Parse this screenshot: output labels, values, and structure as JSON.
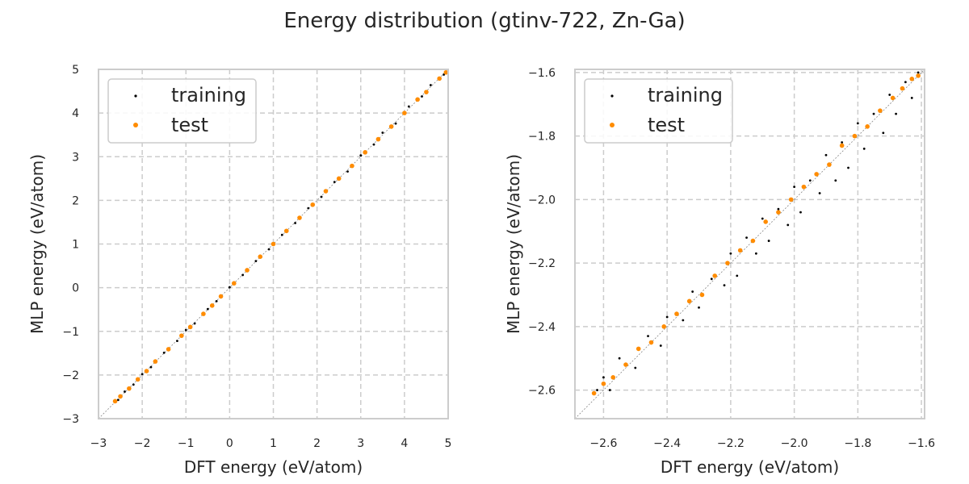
{
  "figure": {
    "title": "Energy distribution (gtinv-722, Zn-Ga)"
  },
  "colors": {
    "training": "#000000",
    "test": "#ff8c00",
    "grid": "#cccccc",
    "frame": "#cccccc",
    "diagonal": "#888888"
  },
  "chart_data": [
    {
      "type": "scatter",
      "xlabel": "DFT energy (eV/atom)",
      "ylabel": "MLP energy (eV/atom)",
      "xlim": [
        -3,
        5
      ],
      "ylim": [
        -3,
        5
      ],
      "xticks": [
        -3,
        -2,
        -1,
        0,
        1,
        2,
        3,
        4,
        5
      ],
      "yticks": [
        -3,
        -2,
        -1,
        0,
        1,
        2,
        3,
        4,
        5
      ],
      "tick_labels_x": [
        "−3",
        "−2",
        "−1",
        "0",
        "1",
        "2",
        "3",
        "4",
        "5"
      ],
      "tick_labels_y": [
        "−3",
        "−2",
        "−1",
        "0",
        "1",
        "2",
        "3",
        "4",
        "5"
      ],
      "grid": true,
      "legend": "top-left",
      "reference_line": "y = x",
      "series": [
        {
          "name": "training",
          "color": "#000000",
          "x": [
            -2.62,
            -2.55,
            -2.4,
            -2.2,
            -2.0,
            -1.8,
            -1.5,
            -1.2,
            -1.0,
            -0.8,
            -0.5,
            -0.3,
            0.0,
            0.3,
            0.6,
            0.9,
            1.2,
            1.5,
            1.8,
            2.1,
            2.4,
            2.7,
            3.0,
            3.3,
            3.5,
            3.8,
            4.1,
            4.4,
            4.6,
            4.9
          ],
          "y": [
            -2.6,
            -2.57,
            -2.38,
            -2.22,
            -1.98,
            -1.82,
            -1.49,
            -1.22,
            -0.97,
            -0.82,
            -0.49,
            -0.31,
            0.01,
            0.29,
            0.61,
            0.88,
            1.21,
            1.48,
            1.82,
            2.08,
            2.42,
            2.66,
            3.03,
            3.28,
            3.55,
            3.76,
            4.15,
            4.38,
            4.64,
            4.88
          ]
        },
        {
          "name": "test",
          "color": "#ff8c00",
          "x": [
            -2.62,
            -2.5,
            -2.3,
            -2.1,
            -1.9,
            -1.7,
            -1.4,
            -1.1,
            -0.9,
            -0.6,
            -0.4,
            -0.2,
            0.1,
            0.4,
            0.7,
            1.0,
            1.3,
            1.6,
            1.9,
            2.2,
            2.5,
            2.8,
            3.1,
            3.4,
            3.7,
            4.0,
            4.3,
            4.5,
            4.8,
            4.95
          ],
          "y": [
            -2.6,
            -2.49,
            -2.31,
            -2.1,
            -1.91,
            -1.69,
            -1.41,
            -1.1,
            -0.9,
            -0.6,
            -0.41,
            -0.2,
            0.1,
            0.4,
            0.71,
            1.0,
            1.3,
            1.6,
            1.9,
            2.21,
            2.5,
            2.79,
            3.1,
            3.4,
            3.69,
            4.0,
            4.31,
            4.48,
            4.79,
            4.93
          ]
        }
      ]
    },
    {
      "type": "scatter",
      "xlabel": "DFT energy (eV/atom)",
      "ylabel": "MLP energy (eV/atom)",
      "xlim": [
        -2.69,
        -1.59
      ],
      "ylim": [
        -2.69,
        -1.59
      ],
      "xticks": [
        -2.6,
        -2.4,
        -2.2,
        -2.0,
        -1.8,
        -1.6
      ],
      "yticks": [
        -2.6,
        -2.4,
        -2.2,
        -2.0,
        -1.8,
        -1.6
      ],
      "tick_labels_x": [
        "−2.6",
        "−2.4",
        "−2.2",
        "−2.0",
        "−1.8",
        "−1.6"
      ],
      "tick_labels_y": [
        "−2.6",
        "−2.4",
        "−2.2",
        "−2.0",
        "−1.8",
        "−1.6"
      ],
      "grid": true,
      "legend": "top-left",
      "reference_line": "y = x",
      "series": [
        {
          "name": "training",
          "color": "#000000",
          "x": [
            -2.62,
            -2.6,
            -2.58,
            -2.55,
            -2.5,
            -2.46,
            -2.42,
            -2.4,
            -2.35,
            -2.32,
            -2.3,
            -2.26,
            -2.22,
            -2.2,
            -2.18,
            -2.15,
            -2.12,
            -2.1,
            -2.08,
            -2.05,
            -2.02,
            -2.0,
            -1.98,
            -1.95,
            -1.92,
            -1.9,
            -1.87,
            -1.85,
            -1.83,
            -1.8,
            -1.78,
            -1.75,
            -1.72,
            -1.7,
            -1.68,
            -1.65,
            -1.63,
            -1.61
          ],
          "y": [
            -2.6,
            -2.56,
            -2.6,
            -2.5,
            -2.53,
            -2.43,
            -2.46,
            -2.37,
            -2.38,
            -2.29,
            -2.34,
            -2.25,
            -2.27,
            -2.17,
            -2.24,
            -2.12,
            -2.17,
            -2.06,
            -2.13,
            -2.03,
            -2.08,
            -1.96,
            -2.04,
            -1.94,
            -1.98,
            -1.86,
            -1.94,
            -1.82,
            -1.9,
            -1.76,
            -1.84,
            -1.73,
            -1.79,
            -1.67,
            -1.73,
            -1.63,
            -1.68,
            -1.6
          ]
        },
        {
          "name": "test",
          "color": "#ff8c00",
          "x": [
            -2.63,
            -2.6,
            -2.57,
            -2.53,
            -2.49,
            -2.45,
            -2.41,
            -2.37,
            -2.33,
            -2.29,
            -2.25,
            -2.21,
            -2.17,
            -2.13,
            -2.09,
            -2.05,
            -2.01,
            -1.97,
            -1.93,
            -1.89,
            -1.85,
            -1.81,
            -1.77,
            -1.73,
            -1.69,
            -1.66,
            -1.63,
            -1.61
          ],
          "y": [
            -2.61,
            -2.58,
            -2.56,
            -2.52,
            -2.47,
            -2.45,
            -2.4,
            -2.36,
            -2.32,
            -2.3,
            -2.24,
            -2.2,
            -2.16,
            -2.13,
            -2.07,
            -2.04,
            -2.0,
            -1.96,
            -1.92,
            -1.89,
            -1.83,
            -1.8,
            -1.77,
            -1.72,
            -1.68,
            -1.65,
            -1.62,
            -1.61
          ]
        }
      ]
    }
  ]
}
